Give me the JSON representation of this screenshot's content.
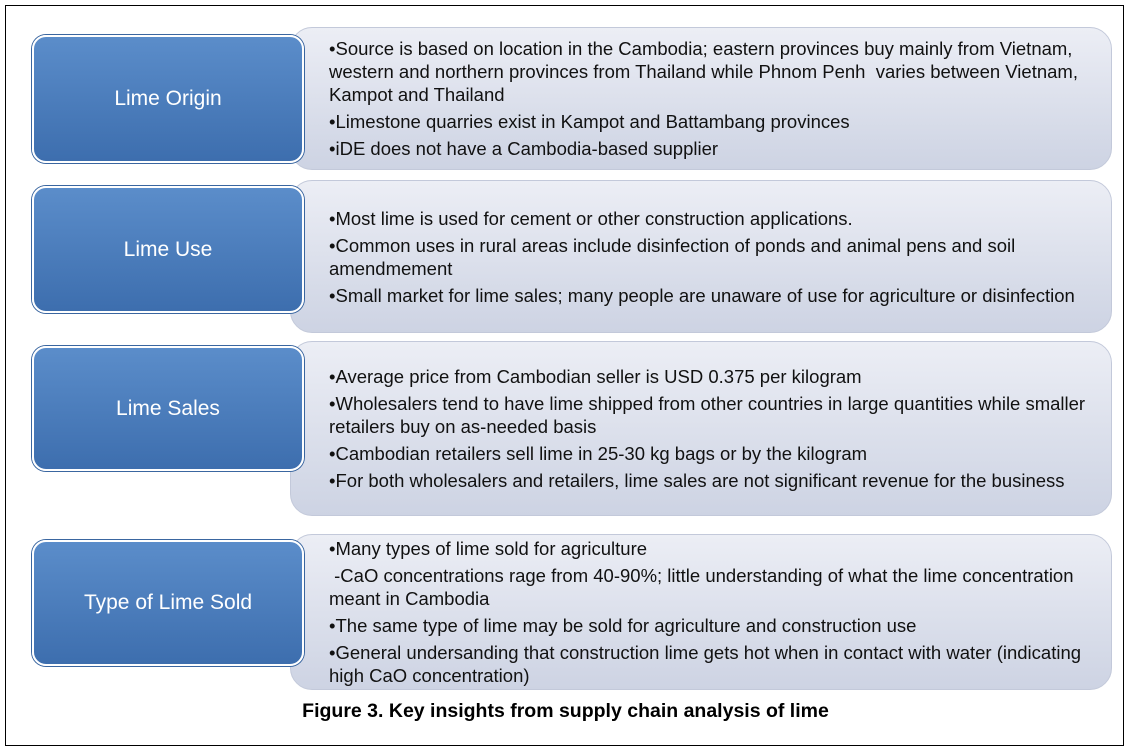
{
  "rows": [
    {
      "label": "Lime Origin",
      "items": [
        "•Source is based on location in the Cambodia; eastern provinces buy mainly from Vietnam, western and northern provinces from Thailand while Phnom Penh  varies between Vietnam, Kampot and Thailand",
        "•Limestone quarries exist in Kampot and Battambang provinces",
        "•iDE does not have a Cambodia-based supplier"
      ]
    },
    {
      "label": "Lime Use",
      "items": [
        "•Most lime is used for cement or other construction applications.",
        "•Common uses in rural areas include disinfection of ponds and animal pens and soil amendmement",
        "•Small market for lime sales; many people are unaware of use for agriculture or disinfection"
      ]
    },
    {
      "label": "Lime Sales",
      "items": [
        "•Average price from Cambodian seller is USD 0.375 per kilogram",
        "•Wholesalers tend to have lime shipped from other countries in large quantities while smaller retailers buy on as-needed basis",
        "•Cambodian retailers sell lime in 25-30 kg bags or by the kilogram",
        "•For both wholesalers and retailers, lime sales are not significant revenue for the business"
      ]
    },
    {
      "label": "Type of Lime Sold",
      "items": [
        "•Many types of lime sold for agriculture",
        " -CaO concentrations rage from 40-90%; little understanding of what the lime concentration meant in Cambodia",
        "•The same type of lime may be sold for agriculture and construction use",
        "•General undersanding that construction lime gets hot when in contact with water (indicating high CaO concentration)"
      ]
    }
  ],
  "caption": "Figure 3. Key insights from supply chain analysis of lime"
}
